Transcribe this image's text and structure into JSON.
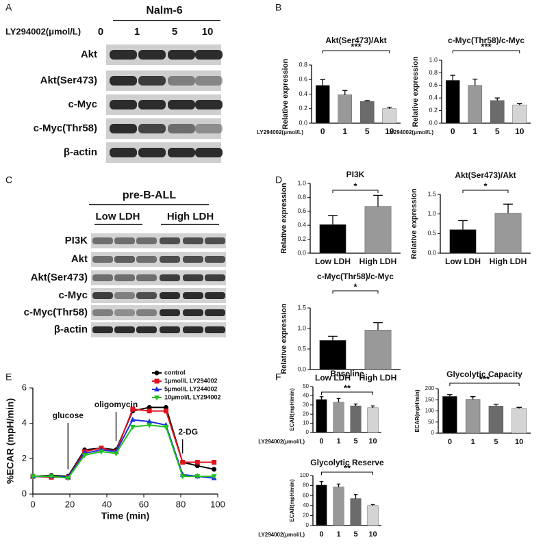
{
  "panels": [
    "A",
    "B",
    "C",
    "D",
    "E",
    "F"
  ],
  "blot_a": {
    "header": "Nalm-6",
    "dose_label": "LY294002(μmol/L)",
    "lanes": [
      "0",
      "1",
      "5",
      "10"
    ],
    "rows": [
      "Akt",
      "Akt(Ser473)",
      "c-Myc",
      "c-Myc(Thr58)",
      "β-actin"
    ]
  },
  "blot_c": {
    "header": "pre-B-ALL",
    "groups": [
      "Low LDH",
      "High LDH"
    ],
    "rows": [
      "PI3K",
      "Akt",
      "Akt(Ser473)",
      "c-Myc",
      "c-Myc(Thr58)",
      "β-actin"
    ]
  },
  "chart_data": [
    {
      "type": "bar",
      "title": "Akt(Ser473)/Akt",
      "ylabel": "Relative expression",
      "xlabel": "LY294002(μmol/L)",
      "categories": [
        "0",
        "1",
        "5",
        "10"
      ],
      "values": [
        0.52,
        0.39,
        0.3,
        0.2
      ],
      "errors": [
        0.08,
        0.06,
        0.01,
        0.02
      ],
      "colors": [
        "#000000",
        "#999999",
        "#6b6b6b",
        "#d4d4d4"
      ],
      "annotation": "***",
      "ylim": [
        0,
        0.8
      ],
      "yticks": [
        {
          "value": 0,
          "label": "0.0"
        },
        0.2,
        0.4,
        0.6,
        0.8
      ]
    },
    {
      "type": "bar",
      "title": "c-Myc(Thr58)/c-Myc",
      "ylabel": "Relative expression",
      "xlabel": "LY294002(μmol/L)",
      "categories": [
        "0",
        "1",
        "5",
        "10"
      ],
      "values": [
        0.68,
        0.6,
        0.36,
        0.29
      ],
      "errors": [
        0.08,
        0.1,
        0.04,
        0.02
      ],
      "colors": [
        "#000000",
        "#999999",
        "#6b6b6b",
        "#d4d4d4"
      ],
      "annotation": "***",
      "ylim": [
        0,
        1.0
      ],
      "yticks": [
        {
          "value": 0,
          "label": "0.0"
        },
        0.2,
        0.4,
        0.6,
        0.8,
        {
          "value": 1,
          "label": "1.0"
        }
      ]
    },
    {
      "type": "bar",
      "title": "PI3K",
      "ylabel": "Relative expression",
      "categories": [
        "Low LDH",
        "High LDH"
      ],
      "values": [
        0.41,
        0.67
      ],
      "errors": [
        0.13,
        0.16
      ],
      "colors": [
        "#000000",
        "#999999"
      ],
      "annotation": "*",
      "ylim": [
        0,
        1.0
      ],
      "yticks": [
        {
          "value": 0,
          "label": "0.0"
        },
        0.2,
        0.4,
        0.6,
        0.8,
        {
          "value": 1,
          "label": "1.0"
        }
      ]
    },
    {
      "type": "bar",
      "title": "Akt(Ser473)/Akt",
      "ylabel": "Relative expression",
      "categories": [
        "Low LDH",
        "High LDH"
      ],
      "values": [
        0.6,
        1.02
      ],
      "errors": [
        0.23,
        0.23
      ],
      "colors": [
        "#000000",
        "#999999"
      ],
      "annotation": "*",
      "ylim": [
        0,
        1.5
      ],
      "yticks": [
        {
          "value": 0,
          "label": "0.0"
        },
        0.5,
        {
          "value": 1,
          "label": "1.0"
        },
        1.5
      ]
    },
    {
      "type": "bar",
      "title": "c-Myc(Thr58)/c-Myc",
      "ylabel": "Relative expression",
      "categories": [
        "Low LDH",
        "High LDH"
      ],
      "values": [
        0.71,
        0.96
      ],
      "errors": [
        0.1,
        0.18
      ],
      "colors": [
        "#000000",
        "#999999"
      ],
      "annotation": "*",
      "ylim": [
        0,
        1.5
      ],
      "yticks": [
        {
          "value": 0,
          "label": "0.0"
        },
        0.5,
        {
          "value": 1,
          "label": "1.0"
        },
        1.5
      ]
    },
    {
      "type": "line",
      "xlabel": "Time (min)",
      "ylabel": "%ECAR (mpH/min)",
      "x": [
        0,
        10,
        19,
        28,
        37,
        45,
        54,
        63,
        72,
        81,
        89,
        98
      ],
      "series": [
        {
          "name": "control",
          "color": "#000000",
          "values": [
            1.0,
            1.05,
            1.0,
            2.5,
            2.6,
            2.5,
            4.7,
            4.9,
            4.9,
            1.8,
            1.6,
            1.4
          ]
        },
        {
          "name": "1μmol/L LY294002",
          "color": "#e0141e",
          "values": [
            1.0,
            0.95,
            0.95,
            2.4,
            2.6,
            2.4,
            4.8,
            4.7,
            4.7,
            1.8,
            1.8,
            1.8
          ]
        },
        {
          "name": "5μmol/L LY244002",
          "color": "#1a2ee0",
          "values": [
            1.0,
            1.0,
            0.95,
            2.3,
            2.5,
            2.4,
            4.2,
            4.1,
            3.9,
            1.1,
            1.0,
            0.9
          ]
        },
        {
          "name": "10μmol/L LY294002",
          "color": "#22c01e",
          "values": [
            1.0,
            1.0,
            0.9,
            2.2,
            2.4,
            2.3,
            3.8,
            3.9,
            3.8,
            1.0,
            1.0,
            1.0
          ]
        }
      ],
      "annotations": [
        {
          "text": "glucose",
          "x": 19
        },
        {
          "text": "oligomycin",
          "x": 45
        },
        {
          "text": "2-DG",
          "x": 81
        }
      ],
      "xlim": [
        0,
        100
      ],
      "xticks": [
        0,
        20,
        40,
        60,
        80,
        100
      ],
      "ylim": [
        0,
        6
      ],
      "yticks": [
        0,
        2,
        4,
        6
      ]
    },
    {
      "type": "bar",
      "title": "Baseline",
      "ylabel": "ECAR(mpH/min)",
      "xlabel": "LY294002(μmol/L)",
      "categories": [
        "0",
        "1",
        "5",
        "10"
      ],
      "values": [
        36,
        33,
        29,
        27
      ],
      "errors": [
        3,
        4,
        2,
        2
      ],
      "colors": [
        "#000000",
        "#999999",
        "#6b6b6b",
        "#d4d4d4"
      ],
      "annotation": "**",
      "ylim": [
        0,
        50
      ],
      "yticks": [
        0,
        10,
        20,
        30,
        40,
        50
      ]
    },
    {
      "type": "bar",
      "title": "Glycolytic Capacity",
      "ylabel": "ECAR(mpH/min)",
      "categories": [
        "0",
        "1",
        "5",
        "10"
      ],
      "values": [
        165,
        152,
        122,
        111
      ],
      "errors": [
        8,
        12,
        8,
        5
      ],
      "colors": [
        "#000000",
        "#999999",
        "#6b6b6b",
        "#d4d4d4"
      ],
      "annotation": "***",
      "ylim": [
        0,
        200
      ],
      "yticks": [
        0,
        50,
        100,
        150,
        200
      ]
    },
    {
      "type": "bar",
      "title": "Glycolytic Reserve",
      "ylabel": "ECAR(mpH/min)",
      "xlabel": "LY294002(μmol/L)",
      "categories": [
        "0",
        "1",
        "5",
        "10"
      ],
      "values": [
        81,
        77,
        54,
        40
      ],
      "errors": [
        7,
        6,
        8,
        2
      ],
      "colors": [
        "#000000",
        "#999999",
        "#6b6b6b",
        "#d4d4d4"
      ],
      "annotation": "**",
      "ylim": [
        0,
        100
      ],
      "yticks": [
        0,
        20,
        40,
        60,
        80,
        100
      ]
    }
  ]
}
